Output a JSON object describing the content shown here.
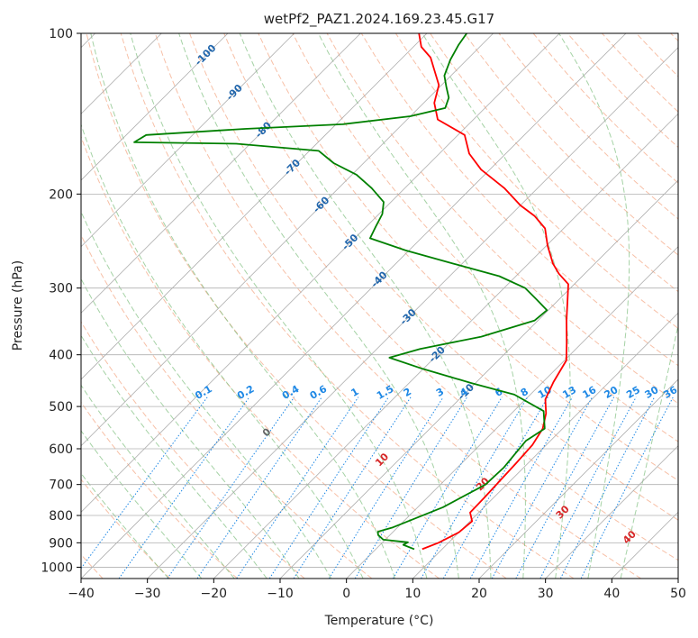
{
  "chart_data": {
    "type": "line",
    "title": "wetPf2_PAZ1.2024.169.23.45.G17",
    "xlabel": "Temperature (°C)",
    "ylabel": "Pressure (hPa)",
    "xlim": [
      -40,
      50
    ],
    "ylim": [
      1050,
      100
    ],
    "y_scale": "log",
    "grid": true,
    "x_ticks": [
      -40,
      -30,
      -20,
      -10,
      0,
      10,
      20,
      30,
      40,
      50
    ],
    "x_tick_labels": [
      "−40",
      "−30",
      "−20",
      "−10",
      "0",
      "10",
      "20",
      "30",
      "40",
      "50"
    ],
    "y_ticks": [
      100,
      200,
      300,
      400,
      500,
      600,
      700,
      800,
      900,
      1000
    ],
    "y_tick_labels": [
      "100",
      "200",
      "300",
      "400",
      "500",
      "600",
      "700",
      "800",
      "900",
      "1000"
    ],
    "skew": 45,
    "colors": {
      "temperature": "#ff0000",
      "dewpoint": "#008000",
      "isotherm": "#a0a0a0",
      "dry_adiabat": "#f4a582",
      "moist_adiabat": "#7fbf7f",
      "mixing_ratio": "#1e88e5",
      "temp_label": "#2166ac",
      "red_label": "#d62728",
      "zero_label": "#666666"
    },
    "series": [
      {
        "key": "temperature",
        "points": [
          [
            7.0,
            925
          ],
          [
            8.5,
            900
          ],
          [
            10.0,
            860
          ],
          [
            10.3,
            820
          ],
          [
            8.7,
            790
          ],
          [
            8.6,
            740
          ],
          [
            8.4,
            690
          ],
          [
            8.2,
            640
          ],
          [
            7.9,
            590
          ],
          [
            7.0,
            550
          ],
          [
            5.2,
            515
          ],
          [
            3.0,
            485
          ],
          [
            1.6,
            450
          ],
          [
            0.3,
            410
          ],
          [
            -2.3,
            380
          ],
          [
            -5.7,
            345
          ],
          [
            -8.2,
            320
          ],
          [
            -10.9,
            295
          ],
          [
            -13.9,
            282
          ],
          [
            -16.3,
            270
          ],
          [
            -19.8,
            250
          ],
          [
            -22.8,
            232
          ],
          [
            -26.2,
            220
          ],
          [
            -30.0,
            210
          ],
          [
            -35.0,
            195
          ],
          [
            -41.3,
            180
          ],
          [
            -45.5,
            168
          ],
          [
            -49.0,
            155
          ],
          [
            -55.4,
            145
          ],
          [
            -58.4,
            135
          ],
          [
            -60.4,
            125
          ],
          [
            -63.8,
            116
          ],
          [
            -65.8,
            111
          ],
          [
            -68.8,
            106
          ],
          [
            -71.2,
            100
          ]
        ]
      },
      {
        "key": "dewpoint",
        "points": [
          [
            5.8,
            925
          ],
          [
            3.5,
            908
          ],
          [
            3.8,
            898
          ],
          [
            -0.3,
            888
          ],
          [
            -1.8,
            870
          ],
          [
            -2.3,
            858
          ],
          [
            -0.7,
            842
          ],
          [
            1.0,
            815
          ],
          [
            3.8,
            772
          ],
          [
            6.8,
            700
          ],
          [
            7.0,
            650
          ],
          [
            6.6,
            610
          ],
          [
            6.3,
            580
          ],
          [
            7.3,
            550
          ],
          [
            4.5,
            510
          ],
          [
            -2.4,
            475
          ],
          [
            -10.6,
            452
          ],
          [
            -20.1,
            425
          ],
          [
            -26.8,
            405
          ],
          [
            -23.5,
            390
          ],
          [
            -16.1,
            370
          ],
          [
            -10.5,
            345
          ],
          [
            -10.2,
            330
          ],
          [
            -13.4,
            315
          ],
          [
            -16.8,
            300
          ],
          [
            -22.5,
            285
          ],
          [
            -31.3,
            270
          ],
          [
            -40.5,
            255
          ],
          [
            -47.7,
            242
          ],
          [
            -48.6,
            230
          ],
          [
            -49.5,
            218
          ],
          [
            -51.1,
            207
          ],
          [
            -55.0,
            195
          ],
          [
            -59.3,
            184
          ],
          [
            -64.5,
            175
          ],
          [
            -68.6,
            166
          ],
          [
            -82.1,
            161
          ],
          [
            -97.7,
            160
          ],
          [
            -97.0,
            155
          ],
          [
            -83.0,
            151
          ],
          [
            -69.0,
            148
          ],
          [
            -60.0,
            143
          ],
          [
            -56.0,
            138
          ],
          [
            -57.0,
            132
          ],
          [
            -59.0,
            126
          ],
          [
            -61.0,
            120
          ],
          [
            -62.5,
            112
          ],
          [
            -63.5,
            105
          ],
          [
            -64.0,
            100
          ]
        ]
      }
    ],
    "isotherm_labels": [
      "-100",
      "-90",
      "-80",
      "-70",
      "-60",
      "-50",
      "-40",
      "-30",
      "-20",
      "-10"
    ],
    "mixing_ratio_labels": [
      "0.1",
      "0.2",
      "0.4",
      "0.6",
      "1",
      "1.5",
      "2",
      "3",
      "4",
      "6",
      "8",
      "10",
      "13",
      "16",
      "20",
      "25",
      "30",
      "36"
    ],
    "isotherm_values": [
      -100,
      -90,
      -80,
      -70,
      -60,
      -50,
      -40,
      -30,
      -20,
      -10
    ],
    "mixing_ratio_values": [
      0.1,
      0.2,
      0.4,
      0.6,
      1,
      1.5,
      2,
      3,
      4,
      6,
      8,
      10,
      13,
      16,
      20,
      25,
      30,
      36
    ],
    "moist_adiabat_labels": [
      "0",
      "10",
      "20",
      "30",
      "40"
    ]
  }
}
